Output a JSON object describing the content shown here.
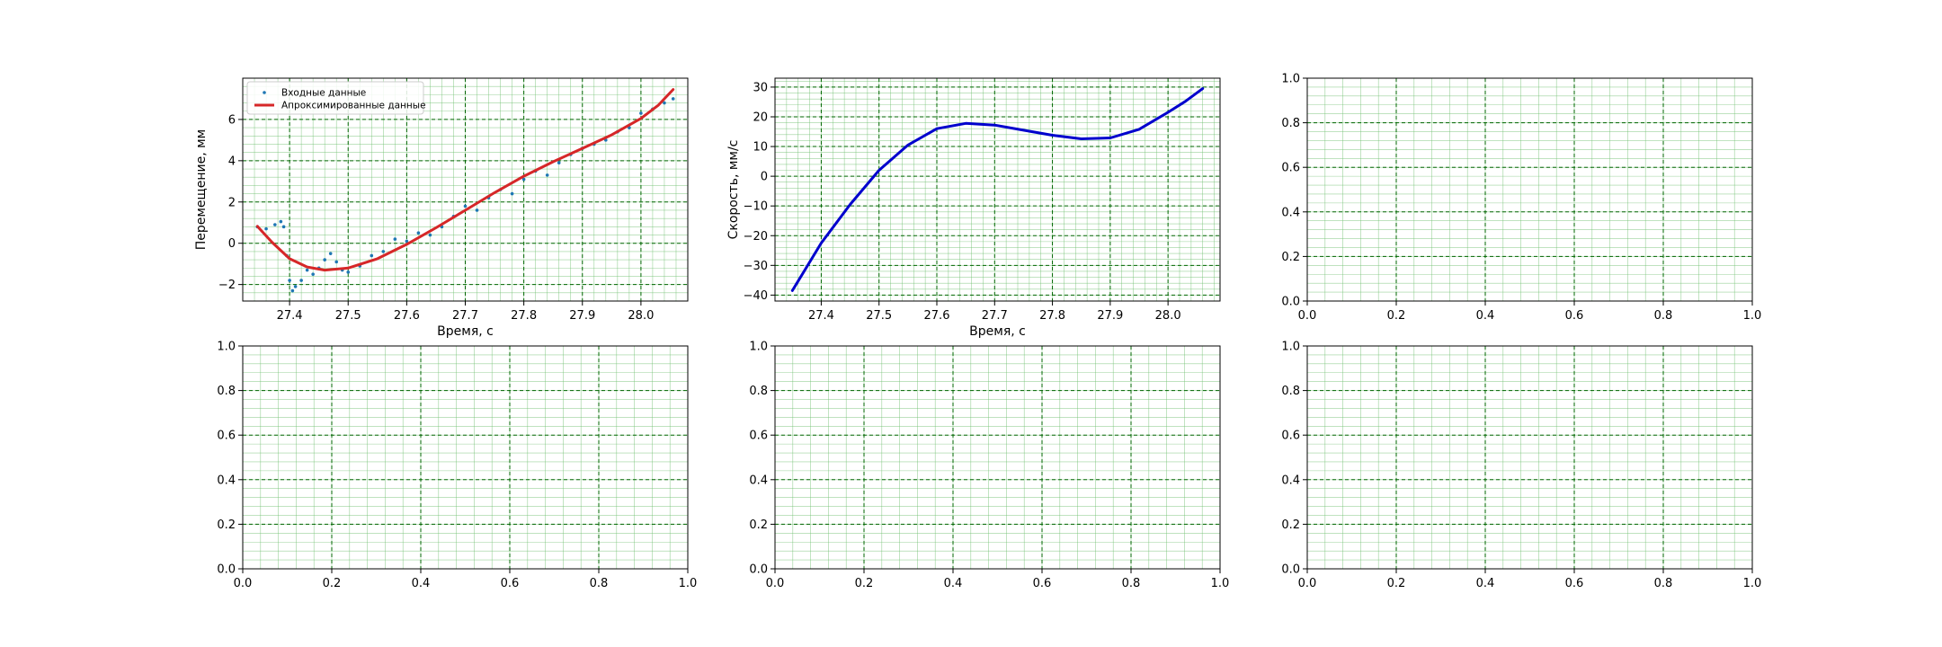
{
  "figure": {
    "background": "#ffffff",
    "grid_major_color": "#006400",
    "grid_minor_color": "#6fbf6f",
    "series_colors": {
      "points": "#1f77b4",
      "fit": "#d62728",
      "velocity": "#0000cd"
    }
  },
  "chart_data": [
    {
      "type": "line",
      "title": "",
      "xlabel": "Время, с",
      "ylabel": "Перемещение, мм",
      "xlim": [
        27.32,
        28.08
      ],
      "ylim": [
        -2.8,
        8.0
      ],
      "xticks": [
        27.4,
        27.5,
        27.6,
        27.7,
        27.8,
        27.9,
        28.0
      ],
      "xtick_labels": [
        "27.4",
        "27.5",
        "27.6",
        "27.7",
        "27.8",
        "27.9",
        "28.0"
      ],
      "yticks": [
        -2,
        0,
        2,
        4,
        6
      ],
      "ytick_labels": [
        "−2",
        "0",
        "2",
        "4",
        "6"
      ],
      "grid": true,
      "legend": "upper-left",
      "series": [
        {
          "name": "Входные данные",
          "kind": "scatter",
          "x": [
            27.345,
            27.36,
            27.375,
            27.385,
            27.39,
            27.395,
            27.4,
            27.405,
            27.41,
            27.42,
            27.43,
            27.44,
            27.45,
            27.46,
            27.47,
            27.48,
            27.49,
            27.5,
            27.52,
            27.54,
            27.56,
            27.58,
            27.6,
            27.62,
            27.64,
            27.66,
            27.68,
            27.7,
            27.72,
            27.74,
            27.76,
            27.78,
            27.8,
            27.82,
            27.84,
            27.86,
            27.88,
            27.9,
            27.92,
            27.94,
            27.96,
            27.98,
            28.0,
            28.02,
            28.04,
            28.055
          ],
          "y": [
            0.8,
            0.7,
            0.9,
            1.05,
            0.8,
            -0.6,
            -1.8,
            -2.3,
            -2.1,
            -1.8,
            -1.3,
            -1.5,
            -1.2,
            -0.8,
            -0.5,
            -0.9,
            -1.3,
            -1.4,
            -1.1,
            -0.6,
            -0.4,
            0.2,
            0.1,
            0.5,
            0.4,
            0.8,
            1.3,
            1.8,
            1.6,
            2.2,
            2.6,
            2.4,
            3.1,
            3.5,
            3.3,
            3.9,
            4.3,
            4.6,
            4.8,
            5.0,
            5.4,
            5.6,
            6.3,
            6.5,
            6.8,
            7.0
          ]
        },
        {
          "name": "Апроксимированные данные",
          "kind": "line",
          "x": [
            27.345,
            27.37,
            27.4,
            27.43,
            27.46,
            27.5,
            27.55,
            27.6,
            27.65,
            27.7,
            27.75,
            27.8,
            27.85,
            27.9,
            27.95,
            28.0,
            28.03,
            28.055
          ],
          "y": [
            0.82,
            0.05,
            -0.75,
            -1.15,
            -1.3,
            -1.2,
            -0.75,
            -0.05,
            0.75,
            1.6,
            2.45,
            3.25,
            3.95,
            4.6,
            5.25,
            6.05,
            6.7,
            7.45
          ]
        }
      ]
    },
    {
      "type": "line",
      "title": "",
      "xlabel": "Время, с",
      "ylabel": "Скорость, мм/с",
      "xlim": [
        27.32,
        28.09
      ],
      "ylim": [
        -42,
        33
      ],
      "xticks": [
        27.4,
        27.5,
        27.6,
        27.7,
        27.8,
        27.9,
        28.0
      ],
      "xtick_labels": [
        "27.4",
        "27.5",
        "27.6",
        "27.7",
        "27.8",
        "27.9",
        "28.0"
      ],
      "yticks": [
        -40,
        -30,
        -20,
        -10,
        0,
        10,
        20,
        30
      ],
      "ytick_labels": [
        "−40",
        "−30",
        "−20",
        "−10",
        "0",
        "10",
        "20",
        "30"
      ],
      "grid": true,
      "series": [
        {
          "kind": "line",
          "x": [
            27.35,
            27.4,
            27.45,
            27.5,
            27.55,
            27.6,
            27.65,
            27.7,
            27.75,
            27.8,
            27.85,
            27.9,
            27.95,
            28.0,
            28.03,
            28.06
          ],
          "y": [
            -38.5,
            -22.5,
            -9.5,
            2.0,
            10.5,
            16.0,
            17.8,
            17.2,
            15.5,
            13.8,
            12.6,
            12.9,
            15.8,
            21.5,
            25.2,
            29.5
          ]
        }
      ]
    },
    {
      "type": "line",
      "empty": true,
      "title": "",
      "xlabel": "",
      "ylabel": "",
      "xlim": [
        0,
        1
      ],
      "ylim": [
        0,
        1
      ],
      "xticks": [
        0,
        0.2,
        0.4,
        0.6,
        0.8,
        1.0
      ],
      "xtick_labels": [
        "0.0",
        "0.2",
        "0.4",
        "0.6",
        "0.8",
        "1.0"
      ],
      "yticks": [
        0,
        0.2,
        0.4,
        0.6,
        0.8,
        1.0
      ],
      "ytick_labels": [
        "0.0",
        "0.2",
        "0.4",
        "0.6",
        "0.8",
        "1.0"
      ],
      "grid": true,
      "series": []
    },
    {
      "type": "line",
      "empty": true,
      "title": "",
      "xlabel": "",
      "ylabel": "",
      "xlim": [
        0,
        1
      ],
      "ylim": [
        0,
        1
      ],
      "xticks": [
        0,
        0.2,
        0.4,
        0.6,
        0.8,
        1.0
      ],
      "xtick_labels": [
        "0.0",
        "0.2",
        "0.4",
        "0.6",
        "0.8",
        "1.0"
      ],
      "yticks": [
        0,
        0.2,
        0.4,
        0.6,
        0.8,
        1.0
      ],
      "ytick_labels": [
        "0.0",
        "0.2",
        "0.4",
        "0.6",
        "0.8",
        "1.0"
      ],
      "grid": true,
      "series": []
    },
    {
      "type": "line",
      "empty": true,
      "title": "",
      "xlabel": "",
      "ylabel": "",
      "xlim": [
        0,
        1
      ],
      "ylim": [
        0,
        1
      ],
      "xticks": [
        0,
        0.2,
        0.4,
        0.6,
        0.8,
        1.0
      ],
      "xtick_labels": [
        "0.0",
        "0.2",
        "0.4",
        "0.6",
        "0.8",
        "1.0"
      ],
      "yticks": [
        0,
        0.2,
        0.4,
        0.6,
        0.8,
        1.0
      ],
      "ytick_labels": [
        "0.0",
        "0.2",
        "0.4",
        "0.6",
        "0.8",
        "1.0"
      ],
      "grid": true,
      "series": []
    },
    {
      "type": "line",
      "empty": true,
      "title": "",
      "xlabel": "",
      "ylabel": "",
      "xlim": [
        0,
        1
      ],
      "ylim": [
        0,
        1
      ],
      "xticks": [
        0,
        0.2,
        0.4,
        0.6,
        0.8,
        1.0
      ],
      "xtick_labels": [
        "0.0",
        "0.2",
        "0.4",
        "0.6",
        "0.8",
        "1.0"
      ],
      "yticks": [
        0,
        0.2,
        0.4,
        0.6,
        0.8,
        1.0
      ],
      "ytick_labels": [
        "0.0",
        "0.2",
        "0.4",
        "0.6",
        "0.8",
        "1.0"
      ],
      "grid": true,
      "series": []
    }
  ]
}
